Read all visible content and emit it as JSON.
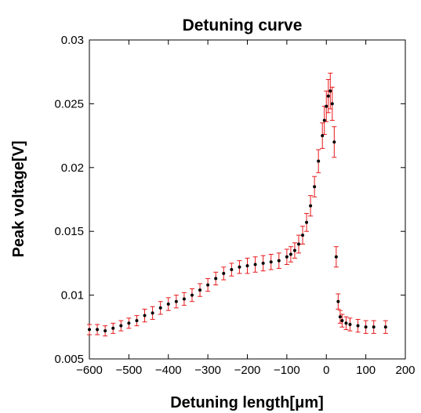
{
  "chart_data": {
    "type": "scatter",
    "title": "Detuning curve",
    "xlabel": "Detuning length[μm]",
    "ylabel": "Peak voltage[V]",
    "xlim": [
      -600,
      200
    ],
    "ylim": [
      0.005,
      0.03
    ],
    "xticks": [
      -600,
      -500,
      -400,
      -300,
      -200,
      -100,
      0,
      100,
      200
    ],
    "xtick_labels": [
      "−600",
      "−500",
      "−400",
      "−300",
      "−200",
      "−100",
      "0",
      "100",
      "200"
    ],
    "yticks": [
      0.005,
      0.01,
      0.015,
      0.02,
      0.025,
      0.03
    ],
    "ytick_labels": [
      "0.005",
      "0.01",
      "0.015",
      "0.02",
      "0.025",
      "0.03"
    ],
    "grid": false,
    "series": [
      {
        "marker_color": "#000000",
        "errorbar_color": "#e8191b",
        "x": [
          -600,
          -580,
          -560,
          -540,
          -520,
          -500,
          -480,
          -460,
          -440,
          -420,
          -400,
          -380,
          -360,
          -340,
          -320,
          -300,
          -280,
          -260,
          -240,
          -220,
          -200,
          -180,
          -160,
          -140,
          -120,
          -100,
          -90,
          -80,
          -70,
          -60,
          -50,
          -40,
          -30,
          -20,
          -10,
          -5,
          0,
          5,
          10,
          15,
          20,
          25,
          30,
          35,
          40,
          50,
          60,
          80,
          100,
          120,
          150
        ],
        "y": [
          0.0073,
          0.0073,
          0.0072,
          0.0074,
          0.0076,
          0.0078,
          0.008,
          0.0084,
          0.0086,
          0.009,
          0.0093,
          0.0095,
          0.0097,
          0.01,
          0.0104,
          0.0108,
          0.0113,
          0.0117,
          0.012,
          0.0122,
          0.0123,
          0.0124,
          0.0125,
          0.0126,
          0.0127,
          0.013,
          0.0132,
          0.0135,
          0.014,
          0.0147,
          0.0157,
          0.017,
          0.0185,
          0.0205,
          0.0225,
          0.0237,
          0.0248,
          0.0256,
          0.026,
          0.025,
          0.022,
          0.013,
          0.0095,
          0.0083,
          0.008,
          0.0078,
          0.0077,
          0.0076,
          0.0075,
          0.0075,
          0.0075
        ],
        "yerr": [
          0.0004,
          0.0004,
          0.0004,
          0.0004,
          0.0004,
          0.0004,
          0.0004,
          0.0005,
          0.0005,
          0.0005,
          0.0005,
          0.0005,
          0.0005,
          0.0005,
          0.0005,
          0.0005,
          0.0005,
          0.0005,
          0.0005,
          0.0005,
          0.0006,
          0.0006,
          0.0006,
          0.0006,
          0.0006,
          0.0006,
          0.0006,
          0.0006,
          0.0007,
          0.0007,
          0.0007,
          0.0008,
          0.0008,
          0.0009,
          0.001,
          0.0011,
          0.0012,
          0.0013,
          0.0014,
          0.0013,
          0.0012,
          0.0008,
          0.0006,
          0.0005,
          0.0005,
          0.0005,
          0.0005,
          0.0005,
          0.0005,
          0.0005,
          0.0005
        ]
      }
    ]
  }
}
